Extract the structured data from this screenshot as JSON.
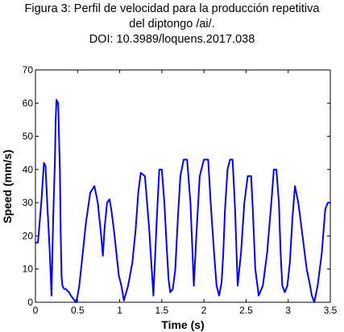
{
  "caption": {
    "line1": "Figura 3: Perfil de velocidad para la producción repetitiva",
    "line2": "del diptongo /ai/.",
    "line3": "DOI: 10.3989/loquens.2017.038"
  },
  "chart_data": {
    "type": "line",
    "title": "",
    "xlabel": "Time (s)",
    "ylabel": "Speed (mm/s)",
    "xlim": [
      0,
      3.5
    ],
    "ylim": [
      0,
      70
    ],
    "xticks": [
      "0",
      "0.5",
      "1",
      "1.5",
      "2",
      "2.5",
      "3",
      "3.5"
    ],
    "yticks": [
      "0",
      "10",
      "20",
      "30",
      "40",
      "50",
      "60",
      "70"
    ],
    "grid": false,
    "legend": "none",
    "line_color": "#0000ff",
    "series": [
      {
        "x": [
          0.0,
          0.03,
          0.07,
          0.1,
          0.12,
          0.14,
          0.17,
          0.19,
          0.21,
          0.23,
          0.24,
          0.25,
          0.27,
          0.29,
          0.3,
          0.31,
          0.32,
          0.34,
          0.36,
          0.38,
          0.4,
          0.42,
          0.45,
          0.48,
          0.5,
          0.52,
          0.55,
          0.6,
          0.65,
          0.7,
          0.74,
          0.78,
          0.8,
          0.82,
          0.85,
          0.88,
          0.9,
          0.93,
          0.96,
          0.99,
          1.02,
          1.05,
          1.1,
          1.15,
          1.19,
          1.22,
          1.25,
          1.3,
          1.35,
          1.4,
          1.44,
          1.47,
          1.5,
          1.53,
          1.56,
          1.58,
          1.6,
          1.63,
          1.66,
          1.69,
          1.72,
          1.76,
          1.8,
          1.84,
          1.88,
          1.91,
          1.95,
          2.0,
          2.05,
          2.08,
          2.12,
          2.15,
          2.18,
          2.21,
          2.23,
          2.25,
          2.28,
          2.31,
          2.34,
          2.37,
          2.4,
          2.44,
          2.48,
          2.52,
          2.56,
          2.58,
          2.61,
          2.65,
          2.7,
          2.75,
          2.8,
          2.83,
          2.86,
          2.89,
          2.91,
          2.93,
          2.96,
          2.99,
          3.02,
          3.05,
          3.08,
          3.12,
          3.17,
          3.22,
          3.26,
          3.28,
          3.31,
          3.35,
          3.4,
          3.44,
          3.47,
          3.49,
          3.5
        ],
        "y": [
          18,
          18,
          30,
          42,
          41,
          30,
          15,
          2,
          25,
          42,
          55,
          61,
          60,
          40,
          20,
          8,
          5,
          4,
          4,
          3.5,
          3,
          2,
          1,
          0,
          2,
          5,
          12,
          24,
          33,
          35,
          30,
          20,
          14,
          22,
          30,
          31,
          28,
          22,
          15,
          8,
          5,
          0.5,
          5,
          12,
          22,
          33,
          39,
          38,
          22,
          2,
          25,
          40,
          40,
          30,
          16,
          7,
          3,
          4,
          10,
          25,
          38,
          43,
          43,
          30,
          5,
          20,
          38,
          43,
          43,
          30,
          15,
          5,
          2,
          6,
          15,
          28,
          40,
          43,
          43,
          28,
          5,
          15,
          30,
          38,
          38,
          28,
          10,
          2,
          5,
          15,
          30,
          40,
          40,
          30,
          15,
          5,
          3,
          5,
          12,
          25,
          35,
          30,
          20,
          10,
          5,
          2,
          0,
          5,
          15,
          28,
          30,
          30,
          30
        ]
      }
    ]
  }
}
